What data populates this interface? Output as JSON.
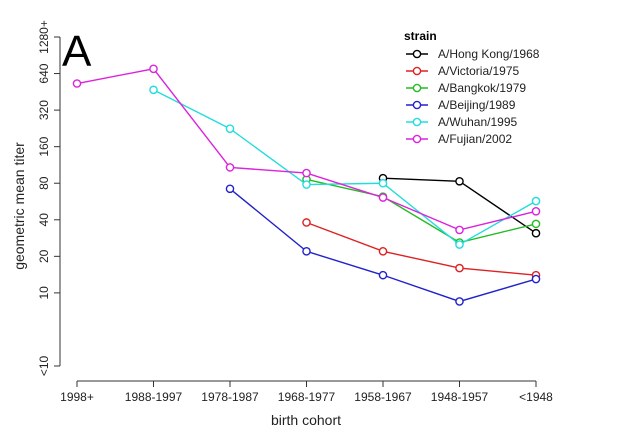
{
  "chart_data": {
    "type": "line",
    "panel_label": "A",
    "xlabel": "birth cohort",
    "ylabel": "geometric mean titer",
    "y_scale": "log2",
    "categories": [
      "1998+",
      "1988-1997",
      "1978-1987",
      "1968-1977",
      "1958-1967",
      "1948-1957",
      "<1948"
    ],
    "y_ticks": [
      {
        "label": "<10",
        "value": 2.5
      },
      {
        "label": "10",
        "value": 10
      },
      {
        "label": "20",
        "value": 20
      },
      {
        "label": "40",
        "value": 40
      },
      {
        "label": "80",
        "value": 80
      },
      {
        "label": "160",
        "value": 160
      },
      {
        "label": "320",
        "value": 320
      },
      {
        "label": "640",
        "value": 640
      },
      {
        "label": "1280+",
        "value": 1280
      }
    ],
    "legend": {
      "title": "strain",
      "position": "top-right"
    },
    "series": [
      {
        "name": "A/Hong Kong/1968",
        "color": "#000000",
        "values": [
          null,
          null,
          null,
          null,
          88,
          83,
          31
        ]
      },
      {
        "name": "A/Victoria/1975",
        "color": "#dd2222",
        "values": [
          null,
          null,
          null,
          38,
          22,
          16,
          14
        ]
      },
      {
        "name": "A/Bangkok/1979",
        "color": "#22bb22",
        "values": [
          null,
          null,
          null,
          86,
          62,
          26,
          37
        ]
      },
      {
        "name": "A/Beijing/1989",
        "color": "#2222cc",
        "values": [
          null,
          null,
          72,
          22,
          14,
          8.5,
          13
        ]
      },
      {
        "name": "A/Wuhan/1995",
        "color": "#22dddd",
        "values": [
          null,
          470,
          225,
          78,
          80,
          25,
          57
        ]
      },
      {
        "name": "A/Fujian/2002",
        "color": "#dd22dd",
        "values": [
          530,
          700,
          108,
          97,
          61,
          33,
          47
        ]
      }
    ]
  }
}
